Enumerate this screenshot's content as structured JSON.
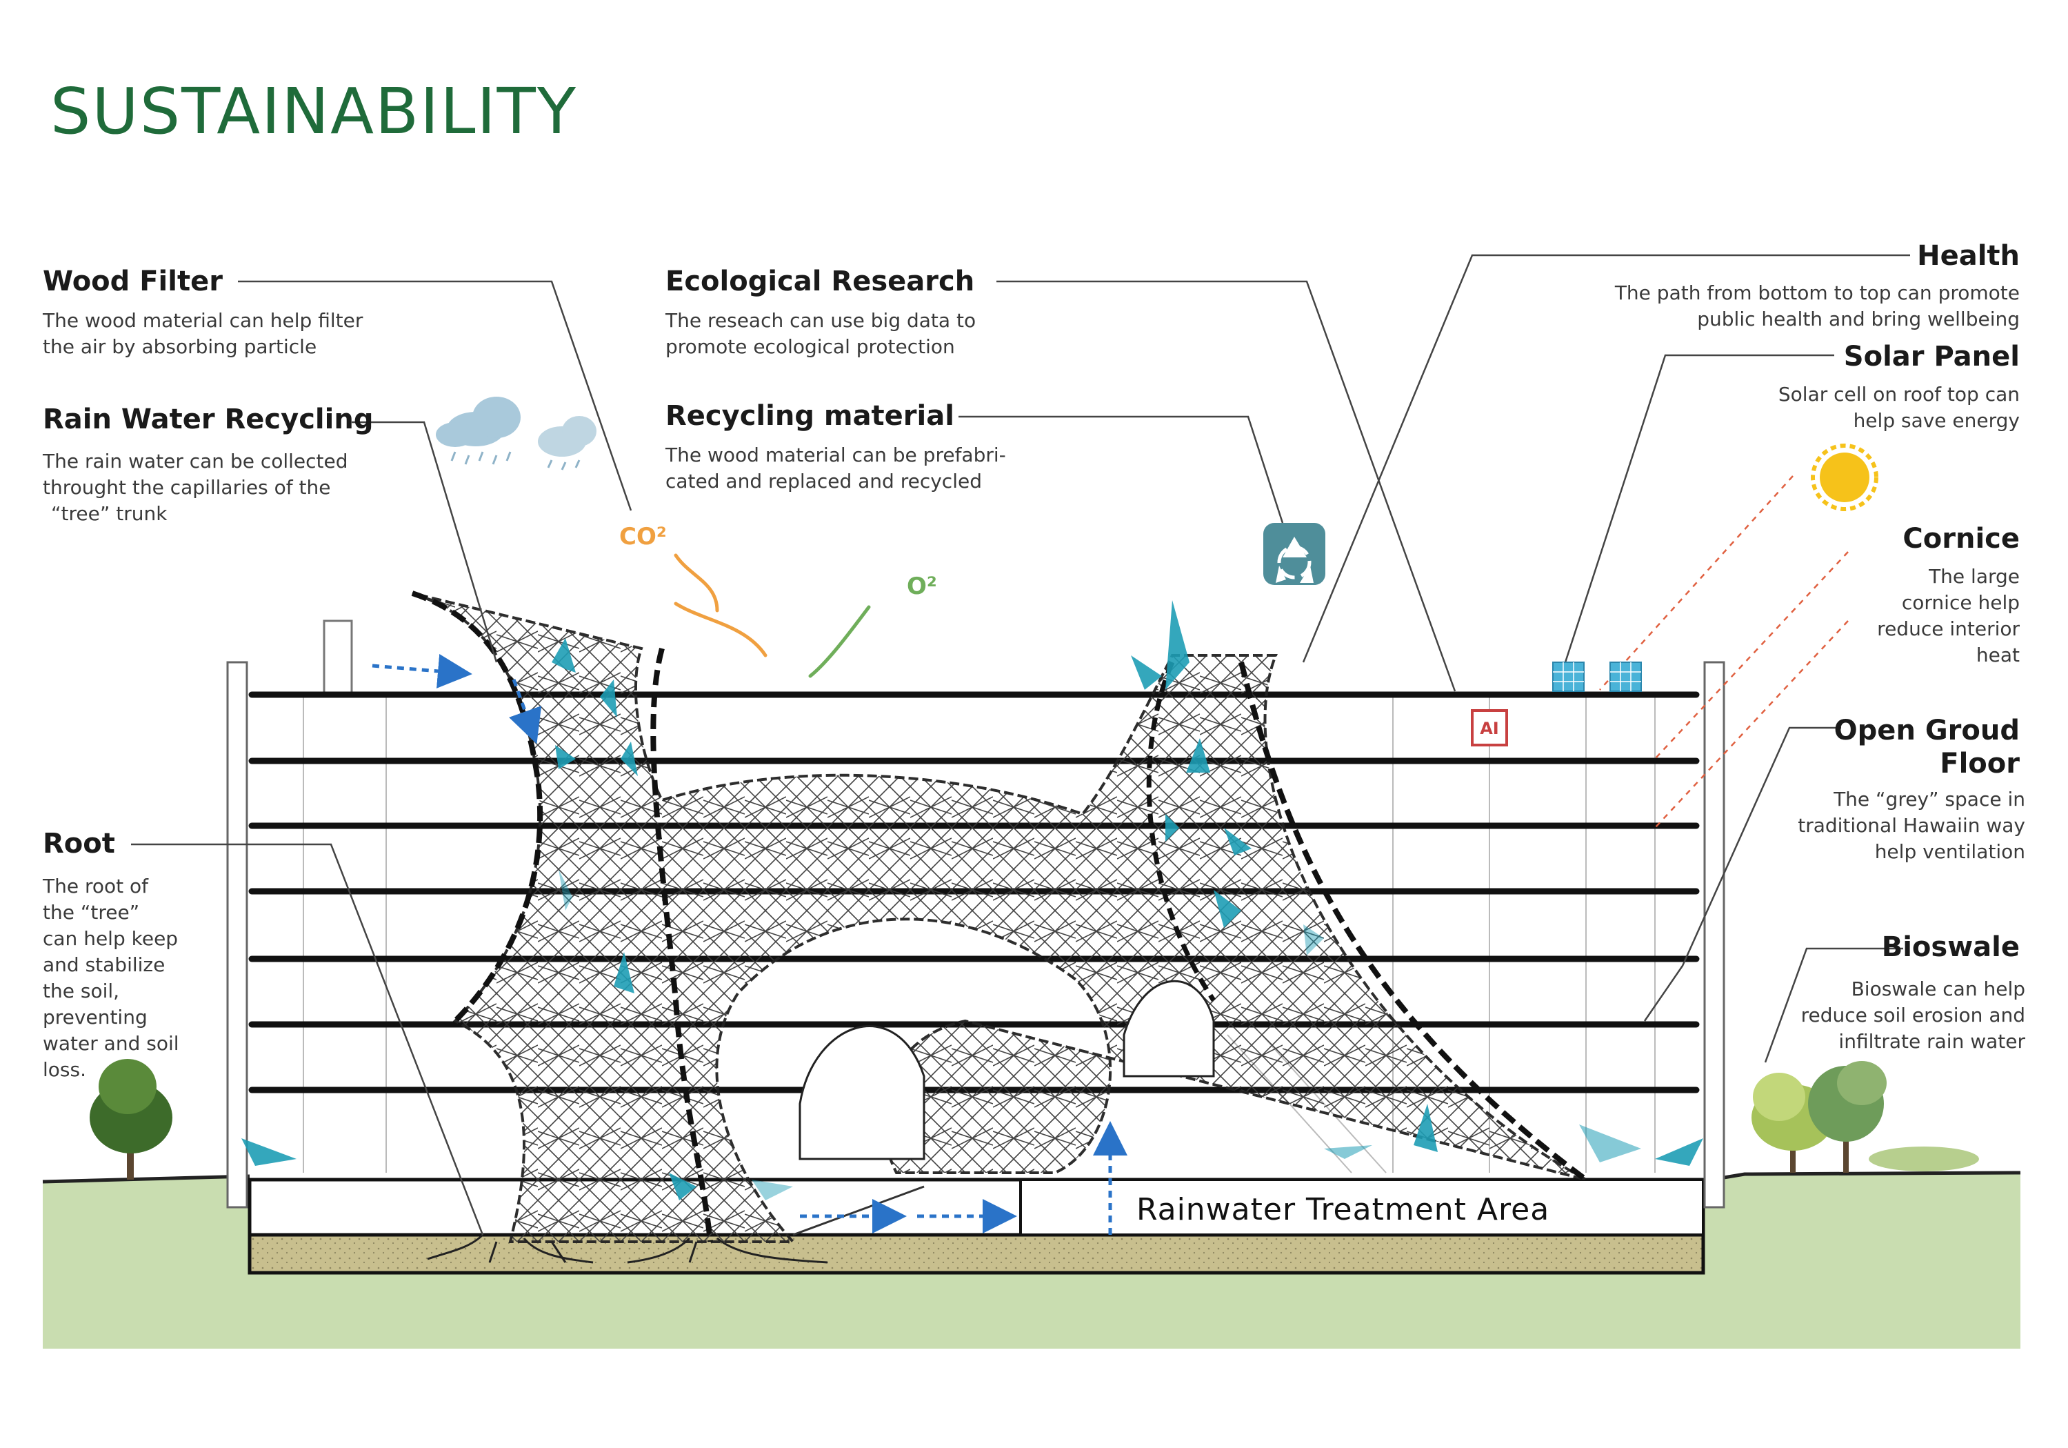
{
  "title": "SUSTAINABILITY",
  "colors": {
    "title": "#1f6b3a",
    "ground": "#c9ddb0",
    "soil": "#c8bf8e",
    "arrow": "#1e9db5",
    "dashed_arrow": "#2a73c8",
    "co2": "#f0a040",
    "o2": "#6fae5a",
    "sun": "#f6c21a",
    "recycle_badge": "#4f8e9a",
    "ai_chip": "#c84040"
  },
  "annotations": {
    "wood_filter": {
      "title": "Wood Filter",
      "lines": [
        "The wood material can help filter",
        "the air by absorbing particle"
      ]
    },
    "rain_water": {
      "title": "Rain Water Recycling",
      "lines": [
        "The rain water can be collected",
        "throught the capillaries of the",
        "“tree”  trunk"
      ]
    },
    "ecological": {
      "title": "Ecological Research",
      "lines": [
        "The reseach can use big data to",
        "promote ecological protection"
      ]
    },
    "recycling": {
      "title": "Recycling material",
      "lines": [
        "The wood material can be prefabri-",
        "cated and replaced and recycled"
      ]
    },
    "health": {
      "title": "Health",
      "lines": [
        "The path from bottom to top can promote",
        "public health and bring wellbeing"
      ]
    },
    "solar": {
      "title": "Solar Panel",
      "lines": [
        "Solar cell on roof top can",
        "help save energy"
      ]
    },
    "cornice": {
      "title": "Cornice",
      "lines": [
        "The large",
        "cornice help",
        "reduce interior",
        "heat"
      ]
    },
    "open_ground": {
      "title_line1": "Open Groud",
      "title_line2": "Floor",
      "lines": [
        "The  “grey”  space in",
        "traditional Hawaiin way",
        "help ventilation"
      ]
    },
    "bioswale": {
      "title": "Bioswale",
      "lines": [
        "Bioswale can help",
        "reduce soil erosion and",
        "infiltrate rain water"
      ]
    },
    "root": {
      "title": "Root",
      "lines": [
        "The root of",
        "the  “tree”",
        "can help keep",
        "and stabilize",
        "the soil,",
        "preventing",
        "water and soil",
        "loss."
      ]
    }
  },
  "chem": {
    "co2": "CO²",
    "o2": "O²"
  },
  "ai_chip": "AI",
  "rainwater_area": "Rainwater Treatment Area",
  "icons": [
    "cloud-rain-icon",
    "sun-icon",
    "recycle-icon",
    "solar-panel-icon",
    "ai-chip-icon",
    "tree-icon"
  ]
}
